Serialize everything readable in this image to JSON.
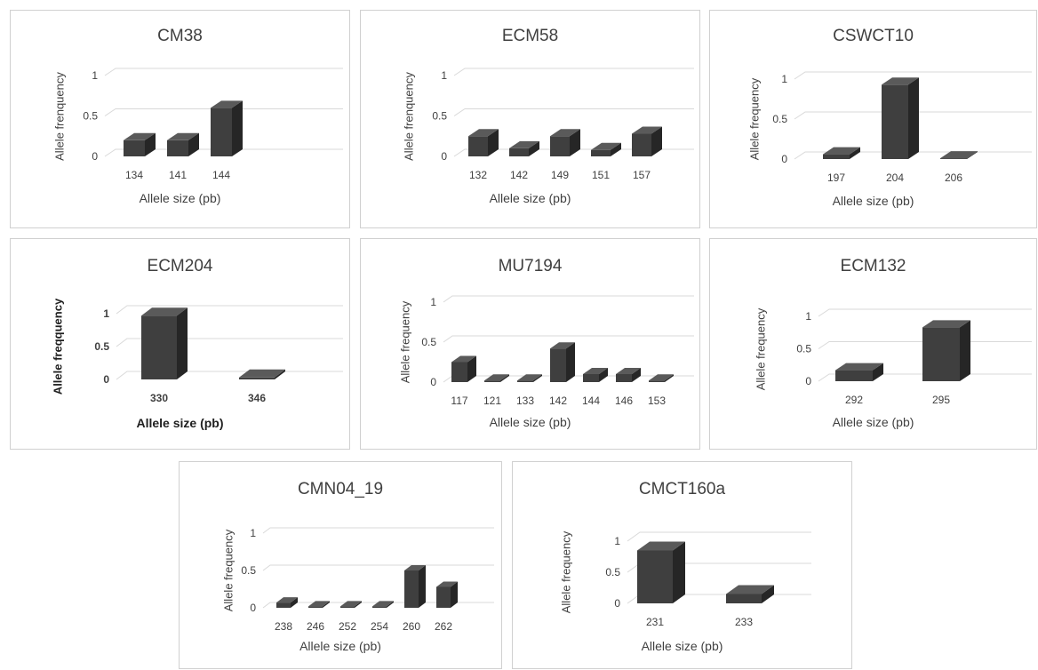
{
  "chart_data": [
    {
      "type": "bar",
      "title": "CM38",
      "xlabel": "Allele size (pb)",
      "ylabel": "Allele frenquency",
      "categories": [
        "134",
        "141",
        "144"
      ],
      "values": [
        0.2,
        0.2,
        0.6
      ],
      "ylim": [
        0,
        1
      ],
      "yticks": [
        "0",
        "0.5",
        "1"
      ],
      "grid": true,
      "legend": "none"
    },
    {
      "type": "bar",
      "title": "ECM58",
      "xlabel": "Allele size (pb)",
      "ylabel": "Allele frenquency",
      "categories": [
        "132",
        "142",
        "149",
        "151",
        "157"
      ],
      "values": [
        0.25,
        0.1,
        0.25,
        0.08,
        0.28
      ],
      "ylim": [
        0,
        1
      ],
      "yticks": [
        "0",
        "0.5",
        "1"
      ],
      "grid": true,
      "legend": "none"
    },
    {
      "type": "bar",
      "title": "CSWCT10",
      "xlabel": "Allele size (pb)",
      "ylabel": "Allele  frequency",
      "categories": [
        "197",
        "204",
        "206"
      ],
      "values": [
        0.06,
        0.93,
        0.01
      ],
      "ylim": [
        0,
        1
      ],
      "yticks": [
        "0",
        "0.5",
        "1"
      ],
      "grid": true,
      "legend": "none"
    },
    {
      "type": "bar",
      "title": "ECM204",
      "xlabel": "Allele size (pb)",
      "ylabel": "Allele  freqquency",
      "categories": [
        "330",
        "346"
      ],
      "values": [
        0.97,
        0.03
      ],
      "ylim": [
        0,
        1
      ],
      "yticks": [
        "0",
        "0.5",
        "1"
      ],
      "grid": true,
      "legend": "none"
    },
    {
      "type": "bar",
      "title": "MU7194",
      "xlabel": "Allele size (pb)",
      "ylabel": "Allele  frequency",
      "categories": [
        "117",
        "121",
        "133",
        "142",
        "144",
        "146",
        "153"
      ],
      "values": [
        0.25,
        0.02,
        0.02,
        0.42,
        0.1,
        0.1,
        0.02
      ],
      "ylim": [
        0,
        1
      ],
      "yticks": [
        "0",
        "0.5",
        "1"
      ],
      "grid": true,
      "legend": "none"
    },
    {
      "type": "bar",
      "title": "ECM132",
      "xlabel": "Allele size (pb)",
      "ylabel": "Allele  frequency",
      "categories": [
        "292",
        "295"
      ],
      "values": [
        0.17,
        0.83
      ],
      "ylim": [
        0,
        1
      ],
      "yticks": [
        "0",
        "0.5",
        "1"
      ],
      "grid": true,
      "legend": "none"
    },
    {
      "type": "bar",
      "title": "CMN04_19",
      "xlabel": "Allele size (pb)",
      "ylabel": "Allele  frequency",
      "categories": [
        "238",
        "246",
        "252",
        "254",
        "260",
        "262"
      ],
      "values": [
        0.07,
        0.02,
        0.02,
        0.02,
        0.5,
        0.28
      ],
      "ylim": [
        0,
        1
      ],
      "yticks": [
        "0",
        "0.5",
        "1"
      ],
      "grid": true,
      "legend": "none"
    },
    {
      "type": "bar",
      "title": "CMCT160a",
      "xlabel": "Allele size (pb)",
      "ylabel": "Allele  frequency",
      "categories": [
        "231",
        "233"
      ],
      "values": [
        0.85,
        0.15
      ],
      "ylim": [
        0,
        1
      ],
      "yticks": [
        "0",
        "0.5",
        "1"
      ],
      "grid": true,
      "legend": "none"
    }
  ],
  "colors": {
    "bar_front": "#3f3f3f",
    "bar_side": "#262626",
    "bar_top": "#5a5a5a",
    "grid": "#d9d9d9",
    "border": "#d0d0d0"
  }
}
